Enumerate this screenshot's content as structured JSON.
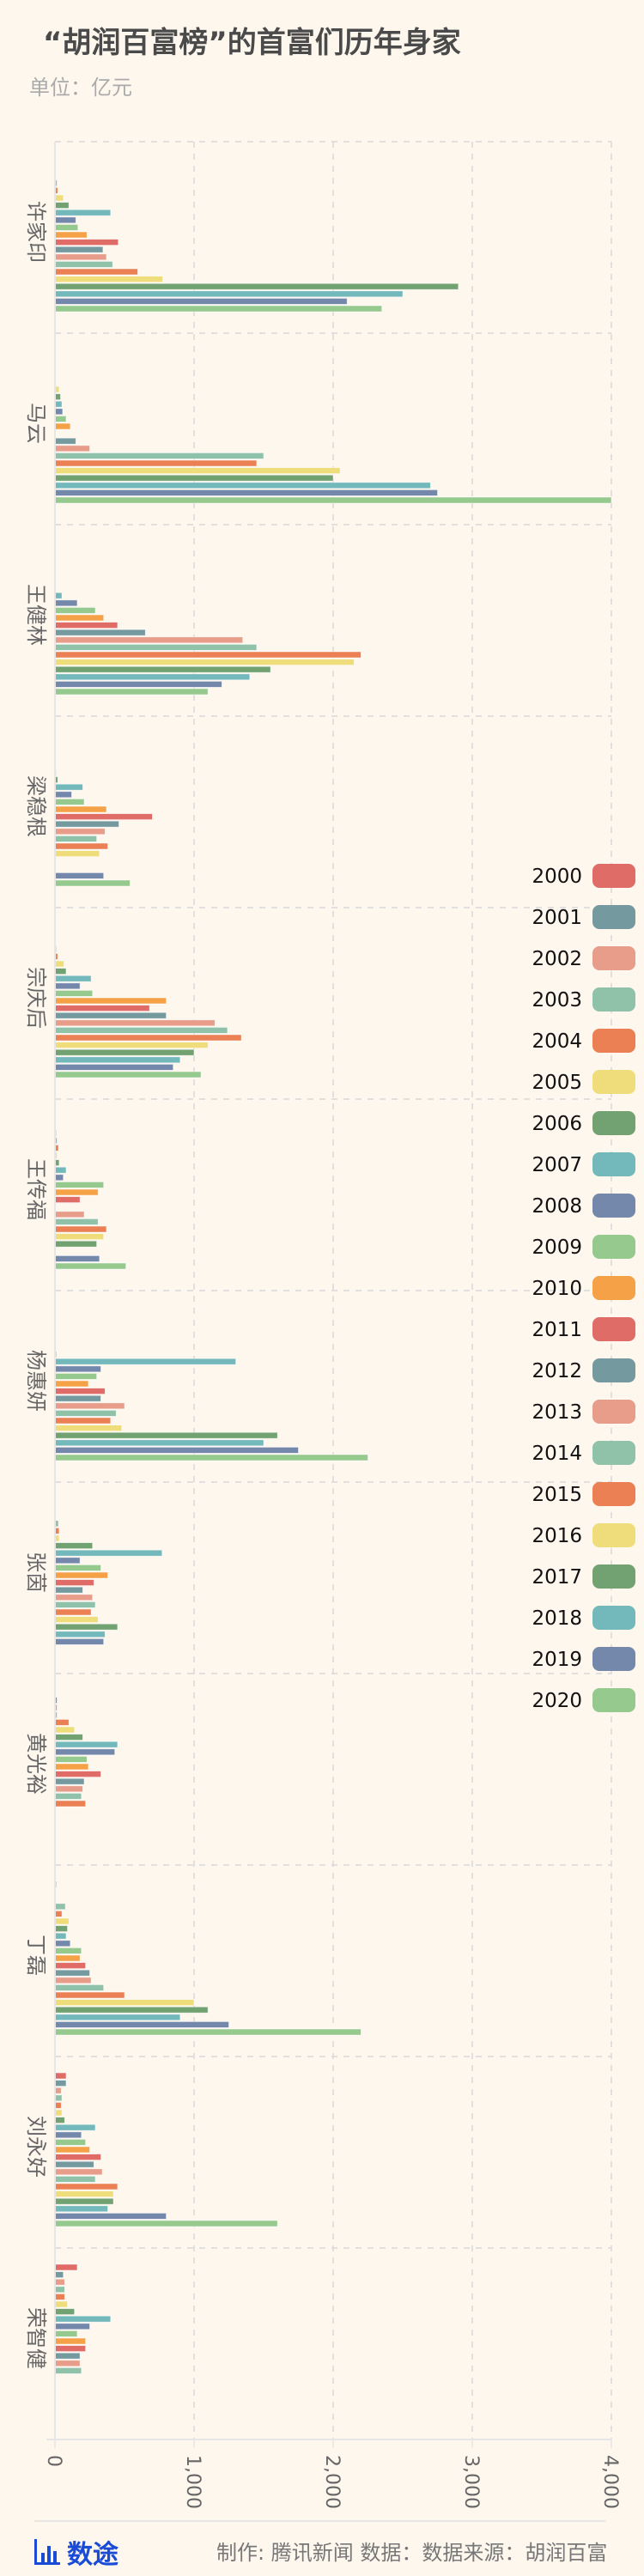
{
  "header": {
    "title": "“胡润百富榜”的首富们历年身家",
    "subtitle": "单位：亿元"
  },
  "footer": {
    "brand": "数途",
    "credits": "制作: 腾讯新闻  数据：数据来源：胡润百富"
  },
  "chart_data": {
    "type": "bar",
    "orientation": "horizontal",
    "title": "“胡润百富榜”的首富们历年身家",
    "subtitle": "单位：亿元",
    "xlabel": "",
    "ylabel": "",
    "xlim": [
      0,
      4000
    ],
    "xticks": [
      0,
      1000,
      2000,
      3000,
      4000
    ],
    "xtick_labels": [
      "0",
      "1,000",
      "2,000",
      "3,000",
      "4,000"
    ],
    "grid": true,
    "legend_position": "right",
    "categories": [
      "许家印",
      "马云",
      "王健林",
      "梁稳根",
      "宗庆后",
      "王传福",
      "杨惠妍",
      "张茵",
      "黄光裕",
      "丁磊",
      "刘永好",
      "荣智健"
    ],
    "series": [
      {
        "name": "2000",
        "color": "#e06c68",
        "values": [
          null,
          null,
          null,
          null,
          null,
          null,
          null,
          null,
          null,
          10,
          80,
          160
        ]
      },
      {
        "name": "2001",
        "color": "#749aa0",
        "values": [
          null,
          null,
          null,
          null,
          null,
          null,
          null,
          null,
          15,
          null,
          80,
          60
        ]
      },
      {
        "name": "2002",
        "color": "#e79d8a",
        "values": [
          null,
          null,
          null,
          null,
          null,
          10,
          null,
          null,
          15,
          null,
          45,
          70
        ]
      },
      {
        "name": "2003",
        "color": "#8fc2a9",
        "values": [
          15,
          null,
          null,
          null,
          10,
          15,
          null,
          25,
          15,
          75,
          50,
          70
        ]
      },
      {
        "name": "2004",
        "color": "#ea8054",
        "values": [
          20,
          null,
          null,
          null,
          20,
          25,
          null,
          30,
          100,
          50,
          45,
          70
        ]
      },
      {
        "name": "2005",
        "color": "#efdc7a",
        "values": [
          60,
          30,
          null,
          10,
          65,
          15,
          5,
          30,
          140,
          100,
          50,
          90
        ]
      },
      {
        "name": "2006",
        "color": "#72a271",
        "values": [
          100,
          40,
          null,
          20,
          80,
          30,
          10,
          270,
          200,
          90,
          70,
          140
        ]
      },
      {
        "name": "2007",
        "color": "#73b8bb",
        "values": [
          400,
          50,
          50,
          200,
          260,
          80,
          1300,
          770,
          450,
          80,
          290,
          400
        ]
      },
      {
        "name": "2008",
        "color": "#7388ab",
        "values": [
          150,
          55,
          160,
          120,
          180,
          60,
          330,
          180,
          430,
          110,
          190,
          250
        ]
      },
      {
        "name": "2009",
        "color": "#95c98d",
        "values": [
          165,
          80,
          290,
          210,
          270,
          350,
          300,
          330,
          230,
          190,
          220,
          160
        ]
      },
      {
        "name": "2010",
        "color": "#f4a147",
        "values": [
          230,
          110,
          350,
          370,
          800,
          310,
          240,
          380,
          240,
          180,
          250,
          220
        ]
      },
      {
        "name": "2011",
        "color": "#e06c68",
        "values": [
          455,
          null,
          450,
          700,
          680,
          180,
          360,
          280,
          330,
          220,
          330,
          220
        ]
      },
      {
        "name": "2012",
        "color": "#749aa0",
        "values": [
          345,
          150,
          650,
          460,
          800,
          null,
          330,
          200,
          210,
          250,
          280,
          180
        ]
      },
      {
        "name": "2013",
        "color": "#e79d8a",
        "values": [
          370,
          250,
          1350,
          360,
          1150,
          210,
          500,
          270,
          200,
          260,
          340,
          180
        ]
      },
      {
        "name": "2014",
        "color": "#8fc2a9",
        "values": [
          415,
          1500,
          1450,
          300,
          1240,
          310,
          440,
          290,
          190,
          350,
          290,
          190
        ]
      },
      {
        "name": "2015",
        "color": "#ea8054",
        "values": [
          595,
          1450,
          2200,
          380,
          1340,
          370,
          400,
          260,
          220,
          500,
          450,
          null
        ]
      },
      {
        "name": "2016",
        "color": "#efdc7a",
        "values": [
          775,
          2050,
          2150,
          320,
          1100,
          350,
          480,
          310,
          null,
          1000,
          420,
          null
        ]
      },
      {
        "name": "2017",
        "color": "#72a271",
        "values": [
          2900,
          2000,
          1550,
          null,
          1000,
          300,
          1600,
          450,
          null,
          1100,
          420,
          null
        ]
      },
      {
        "name": "2018",
        "color": "#73b8bb",
        "values": [
          2500,
          2700,
          1400,
          null,
          900,
          null,
          1500,
          360,
          null,
          900,
          380,
          null
        ]
      },
      {
        "name": "2019",
        "color": "#7388ab",
        "values": [
          2100,
          2750,
          1200,
          350,
          850,
          320,
          1750,
          350,
          null,
          1250,
          800,
          null
        ]
      },
      {
        "name": "2020",
        "color": "#95c98d",
        "values": [
          2350,
          4000,
          1100,
          540,
          1050,
          510,
          2250,
          null,
          null,
          2200,
          1600,
          null
        ]
      }
    ]
  }
}
